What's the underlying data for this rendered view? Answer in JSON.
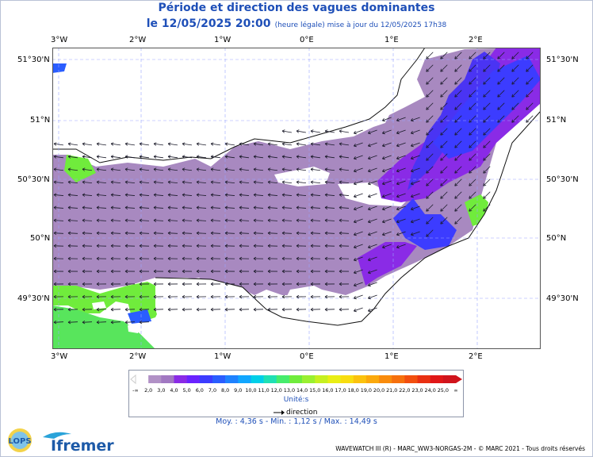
{
  "title": "Période et direction des vagues dominantes",
  "date_line": "le 12/05/2025 20:00",
  "update_note": "(heure légale) mise à jour du 12/05/2025 17h38",
  "lon_labels": [
    "3°W",
    "2°W",
    "1°W",
    "0°E",
    "1°E",
    "2°E"
  ],
  "lat_labels": [
    "51°30'N",
    "51°N",
    "50°30'N",
    "50°N",
    "49°30'N"
  ],
  "legend": {
    "ticks": [
      "-∞",
      "2,0",
      "3,0",
      "4,0",
      "5,0",
      "6,0",
      "7,0",
      "8,0",
      "9,0",
      "10,0",
      "11,0",
      "12,0",
      "13,0",
      "14,0",
      "15,0",
      "16,0",
      "17,0",
      "18,0",
      "19,0",
      "20,0",
      "21,0",
      "22,0",
      "23,0",
      "24,0",
      "25,0",
      "∞"
    ],
    "colors": [
      "#ffffff",
      "#b191c6",
      "#a178c2",
      "#8a2be6",
      "#6a22ff",
      "#3c3cff",
      "#2a5dff",
      "#1e82ff",
      "#11a6ff",
      "#00cfe8",
      "#1fe0b4",
      "#46ec6c",
      "#70ec3c",
      "#9af030",
      "#c6f020",
      "#e9ee15",
      "#f8dd10",
      "#fbc20e",
      "#fba90d",
      "#f98b0c",
      "#f6700d",
      "#f24f0f",
      "#e93012",
      "#e01717",
      "#d0141c"
    ],
    "unit": "Unité:s",
    "direction_label": "direction"
  },
  "stats": "Moy. : 4,36 s  -  Min. : 1,12 s / Max. : 14,49 s",
  "footer": "WAVEWATCH III (R) - MARC_WW3-NORGAS-2M - © MARC 2021 - Tous droits réservés",
  "logos": {
    "lops": "LOPS",
    "ifremer": "Ifremer"
  }
}
